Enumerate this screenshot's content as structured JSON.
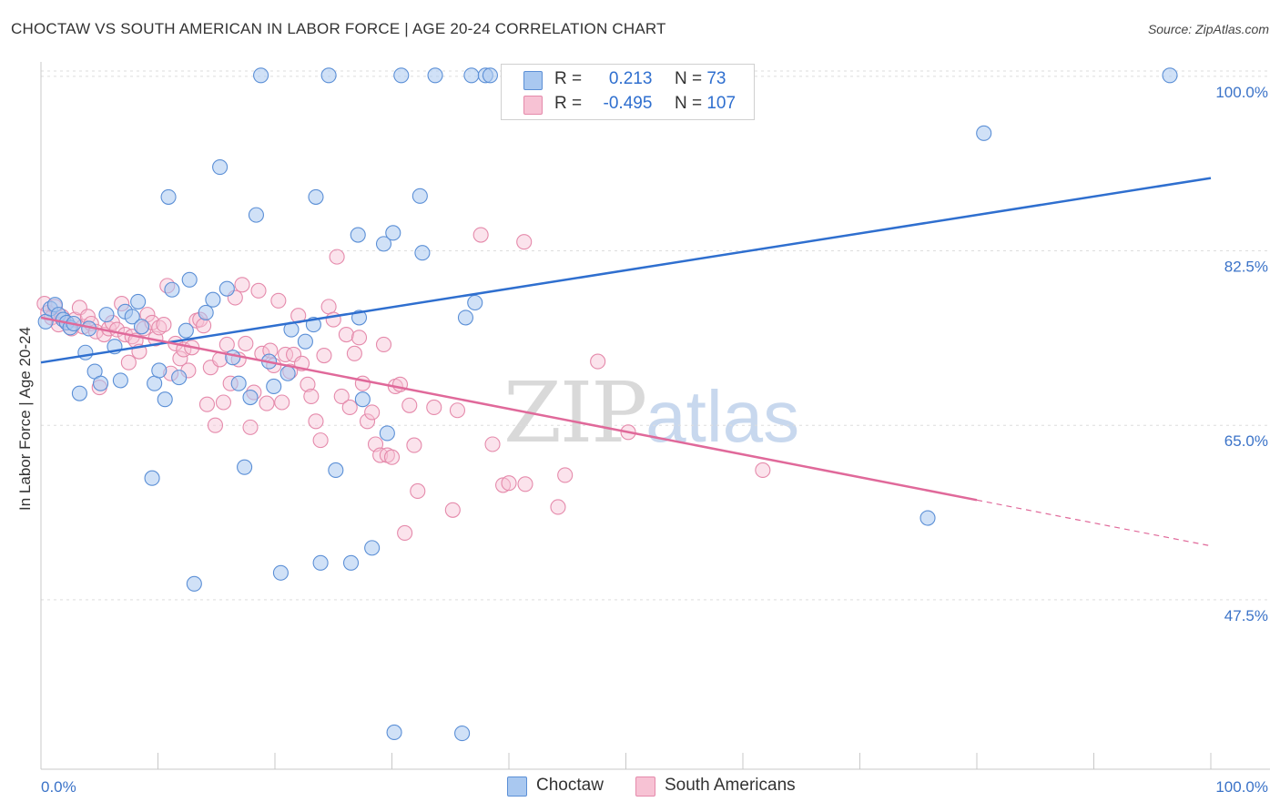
{
  "header": {
    "title": "CHOCTAW VS SOUTH AMERICAN IN LABOR FORCE | AGE 20-24 CORRELATION CHART",
    "source": "Source: ZipAtlas.com"
  },
  "watermark": {
    "zip": "ZIP",
    "atlas": "atlas"
  },
  "legend": {
    "rows": [
      {
        "r_label": "R =",
        "r_value": "0.213",
        "n_label": "N =",
        "n_value": "73"
      },
      {
        "r_label": "R =",
        "r_value": "-0.495",
        "n_label": "N =",
        "n_value": "107"
      }
    ]
  },
  "bottom_legend": {
    "series1": "Choctaw",
    "series2": "South Americans"
  },
  "chart_data": {
    "type": "scatter",
    "ylabel": "In Labor Force | Age 20-24",
    "xlim": [
      0,
      100
    ],
    "ylim": [
      30.5,
      102
    ],
    "x_tick_labels": [
      {
        "value": 0,
        "label": "0.0%"
      },
      {
        "value": 100,
        "label": "100.0%"
      }
    ],
    "y_ticks": [
      {
        "value": 100,
        "label": "100.0%"
      },
      {
        "value": 82.5,
        "label": "82.5%"
      },
      {
        "value": 65,
        "label": "65.0%"
      },
      {
        "value": 47.5,
        "label": "47.5%"
      }
    ],
    "grid": true,
    "legend_position": "top-center",
    "colors": {
      "choctaw_fill": "#a9c8f0",
      "choctaw_stroke": "#5b8fd6",
      "choctaw_line": "#2f6fcf",
      "south_fill": "#f7c2d4",
      "south_stroke": "#e58aab",
      "south_line": "#e0699a"
    },
    "series": [
      {
        "name": "Choctaw",
        "r": 0.213,
        "n": 73,
        "trend": {
          "x": [
            0,
            100
          ],
          "y": [
            71.3,
            89.8
          ]
        },
        "points": [
          [
            0.4,
            75.4
          ],
          [
            0.8,
            76.7
          ],
          [
            1.2,
            77.1
          ],
          [
            1.5,
            76.1
          ],
          [
            1.9,
            75.6
          ],
          [
            2.2,
            75.3
          ],
          [
            2.5,
            74.8
          ],
          [
            2.8,
            75.2
          ],
          [
            3.3,
            68.2
          ],
          [
            3.8,
            72.3
          ],
          [
            4.1,
            74.7
          ],
          [
            4.6,
            70.4
          ],
          [
            5.1,
            69.2
          ],
          [
            5.6,
            76.1
          ],
          [
            6.3,
            72.9
          ],
          [
            6.8,
            69.5
          ],
          [
            7.2,
            76.4
          ],
          [
            7.8,
            75.9
          ],
          [
            8.3,
            77.4
          ],
          [
            8.6,
            74.9
          ],
          [
            9.5,
            59.7
          ],
          [
            9.7,
            69.2
          ],
          [
            10.1,
            70.5
          ],
          [
            10.6,
            67.6
          ],
          [
            10.9,
            87.9
          ],
          [
            11.2,
            78.6
          ],
          [
            11.8,
            69.8
          ],
          [
            12.4,
            74.5
          ],
          [
            12.7,
            79.6
          ],
          [
            13.1,
            49.1
          ],
          [
            14.1,
            76.3
          ],
          [
            14.7,
            77.6
          ],
          [
            15.3,
            90.9
          ],
          [
            15.9,
            78.7
          ],
          [
            16.4,
            71.8
          ],
          [
            16.9,
            69.2
          ],
          [
            17.4,
            60.8
          ],
          [
            17.9,
            67.8
          ],
          [
            18.4,
            86.1
          ],
          [
            18.8,
            100.1
          ],
          [
            19.5,
            71.4
          ],
          [
            19.9,
            68.9
          ],
          [
            20.5,
            50.2
          ],
          [
            21.1,
            70.2
          ],
          [
            21.4,
            74.6
          ],
          [
            22.6,
            73.4
          ],
          [
            23.3,
            75.1
          ],
          [
            23.5,
            87.9
          ],
          [
            23.9,
            51.2
          ],
          [
            24.6,
            100.1
          ],
          [
            25.2,
            60.5
          ],
          [
            27.1,
            84.1
          ],
          [
            27.5,
            67.6
          ],
          [
            26.5,
            51.2
          ],
          [
            27.2,
            75.8
          ],
          [
            28.3,
            52.7
          ],
          [
            29.3,
            83.2
          ],
          [
            29.6,
            64.2
          ],
          [
            30.1,
            84.3
          ],
          [
            30.2,
            34.2
          ],
          [
            30.8,
            100.1
          ],
          [
            32.4,
            88.0
          ],
          [
            32.6,
            82.3
          ],
          [
            33.7,
            100.1
          ],
          [
            36.3,
            75.8
          ],
          [
            36.8,
            100.1
          ],
          [
            38.0,
            100.1
          ],
          [
            38.4,
            100.1
          ],
          [
            36.0,
            34.1
          ],
          [
            37.1,
            77.3
          ],
          [
            80.6,
            94.3
          ],
          [
            75.8,
            55.7
          ],
          [
            96.5,
            100.1
          ]
        ]
      },
      {
        "name": "South Americans",
        "r": -0.495,
        "n": 107,
        "trend": {
          "x": [
            0,
            80
          ],
          "y": [
            75.8,
            57.5
          ]
        },
        "trend_dashed": {
          "x": [
            80,
            100
          ],
          "y": [
            57.5,
            52.9
          ]
        },
        "points": [
          [
            0.3,
            77.2
          ],
          [
            0.6,
            76.3
          ],
          [
            0.9,
            75.8
          ],
          [
            1.2,
            76.9
          ],
          [
            1.5,
            75.1
          ],
          [
            1.8,
            75.9
          ],
          [
            2.2,
            75.3
          ],
          [
            2.6,
            74.7
          ],
          [
            2.9,
            75.6
          ],
          [
            3.3,
            76.8
          ],
          [
            3.6,
            74.9
          ],
          [
            4.0,
            75.9
          ],
          [
            4.3,
            75.2
          ],
          [
            4.7,
            74.4
          ],
          [
            5.0,
            68.8
          ],
          [
            5.4,
            74.1
          ],
          [
            5.8,
            74.7
          ],
          [
            6.1,
            75.3
          ],
          [
            6.5,
            74.6
          ],
          [
            6.9,
            77.2
          ],
          [
            7.2,
            74.1
          ],
          [
            7.5,
            71.3
          ],
          [
            7.8,
            73.9
          ],
          [
            8.1,
            73.5
          ],
          [
            8.4,
            72.4
          ],
          [
            8.8,
            74.7
          ],
          [
            9.1,
            76.1
          ],
          [
            9.5,
            75.3
          ],
          [
            9.8,
            73.7
          ],
          [
            10.1,
            74.8
          ],
          [
            10.5,
            75.1
          ],
          [
            10.8,
            79.0
          ],
          [
            11.1,
            70.2
          ],
          [
            11.5,
            73.2
          ],
          [
            11.9,
            71.7
          ],
          [
            12.2,
            72.6
          ],
          [
            12.6,
            70.5
          ],
          [
            12.9,
            72.8
          ],
          [
            13.3,
            75.5
          ],
          [
            13.6,
            75.6
          ],
          [
            13.9,
            75.0
          ],
          [
            14.2,
            67.1
          ],
          [
            14.5,
            70.8
          ],
          [
            14.9,
            65.0
          ],
          [
            15.3,
            71.6
          ],
          [
            15.6,
            67.3
          ],
          [
            15.9,
            73.1
          ],
          [
            16.2,
            69.2
          ],
          [
            16.6,
            77.8
          ],
          [
            16.9,
            71.6
          ],
          [
            17.2,
            79.1
          ],
          [
            17.5,
            73.2
          ],
          [
            17.9,
            64.8
          ],
          [
            18.2,
            68.3
          ],
          [
            18.6,
            78.5
          ],
          [
            18.9,
            72.2
          ],
          [
            19.3,
            67.2
          ],
          [
            19.6,
            72.5
          ],
          [
            19.9,
            71.0
          ],
          [
            20.3,
            77.5
          ],
          [
            20.6,
            67.3
          ],
          [
            20.9,
            72.1
          ],
          [
            21.3,
            70.4
          ],
          [
            21.6,
            72.1
          ],
          [
            22.0,
            76.0
          ],
          [
            22.3,
            71.2
          ],
          [
            22.8,
            69.1
          ],
          [
            23.1,
            67.9
          ],
          [
            23.5,
            65.4
          ],
          [
            23.9,
            63.5
          ],
          [
            24.2,
            72.0
          ],
          [
            24.6,
            76.9
          ],
          [
            25.0,
            75.6
          ],
          [
            25.3,
            81.9
          ],
          [
            25.7,
            67.9
          ],
          [
            26.1,
            74.1
          ],
          [
            26.4,
            66.8
          ],
          [
            26.8,
            72.2
          ],
          [
            27.2,
            73.8
          ],
          [
            27.5,
            69.2
          ],
          [
            27.9,
            65.4
          ],
          [
            28.3,
            66.3
          ],
          [
            28.6,
            63.1
          ],
          [
            29.0,
            62.0
          ],
          [
            29.3,
            73.1
          ],
          [
            29.6,
            62.0
          ],
          [
            30.0,
            61.8
          ],
          [
            30.3,
            68.9
          ],
          [
            30.7,
            69.1
          ],
          [
            31.1,
            54.2
          ],
          [
            31.5,
            67.0
          ],
          [
            31.9,
            63.0
          ],
          [
            32.2,
            58.4
          ],
          [
            33.6,
            66.8
          ],
          [
            35.2,
            56.5
          ],
          [
            35.6,
            66.5
          ],
          [
            37.6,
            84.1
          ],
          [
            38.6,
            63.1
          ],
          [
            39.5,
            59.0
          ],
          [
            40.0,
            59.2
          ],
          [
            41.3,
            83.4
          ],
          [
            41.4,
            59.1
          ],
          [
            44.2,
            56.8
          ],
          [
            44.8,
            60.0
          ],
          [
            47.6,
            71.4
          ],
          [
            50.2,
            64.3
          ],
          [
            61.7,
            60.5
          ]
        ]
      }
    ]
  }
}
